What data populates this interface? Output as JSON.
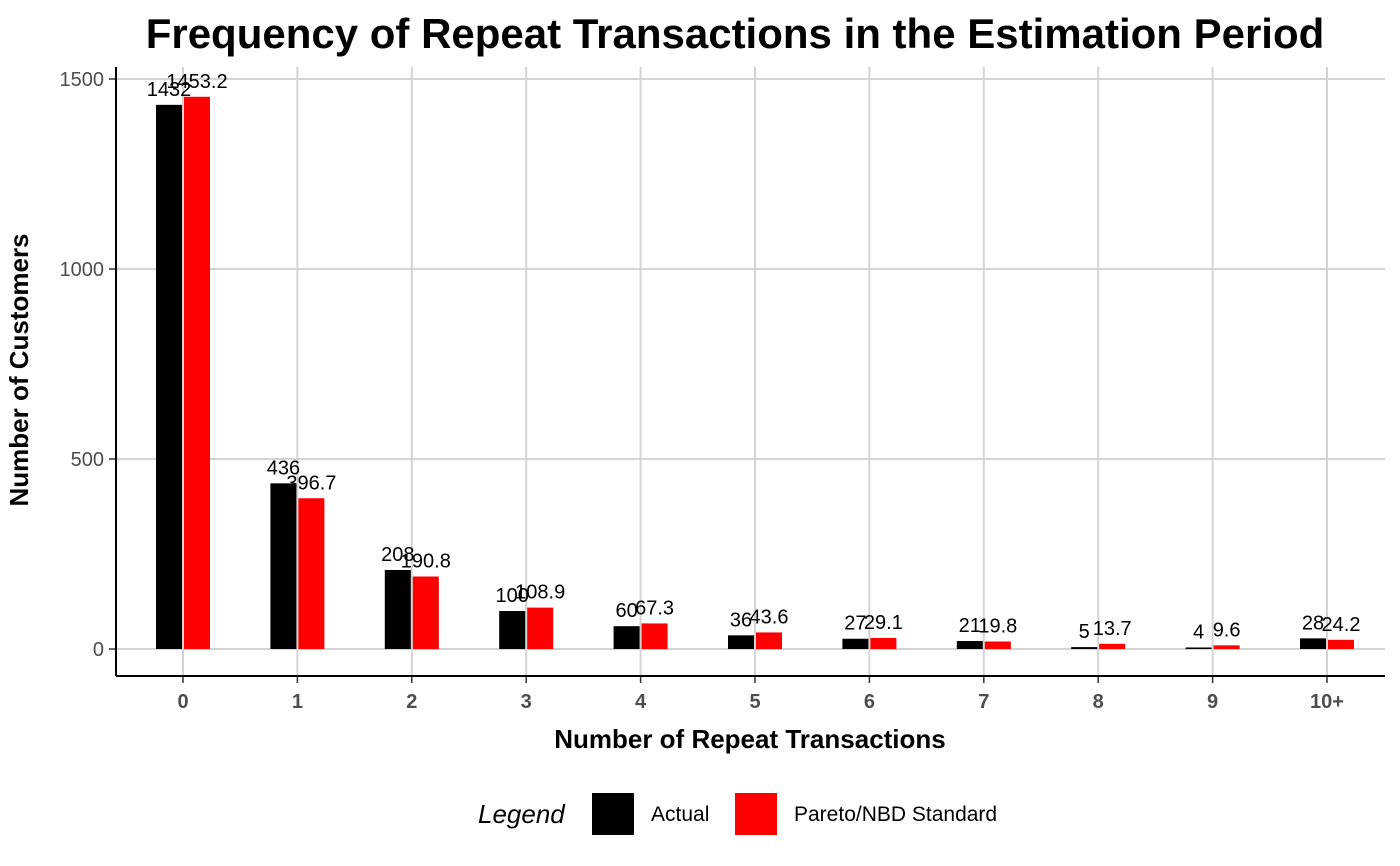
{
  "chart_data": {
    "type": "bar",
    "title": "Frequency of Repeat Transactions in the Estimation Period",
    "xlabel": "Number of Repeat Transactions",
    "ylabel": "Number of Customers",
    "categories": [
      "0",
      "1",
      "2",
      "3",
      "4",
      "5",
      "6",
      "7",
      "8",
      "9",
      "10+"
    ],
    "yticks": [
      0,
      500,
      1000,
      1500
    ],
    "ylim": [
      -70,
      1520
    ],
    "grid": true,
    "legend_position": "bottom",
    "legend_title": "Legend",
    "series": [
      {
        "name": "Actual",
        "color": "#000000",
        "values": [
          1432,
          436,
          208,
          100,
          60,
          36,
          27,
          21,
          5,
          4,
          28
        ],
        "labels": [
          "1432",
          "436",
          "208",
          "100",
          "60",
          "36",
          "27",
          "21",
          "5",
          "4",
          "28"
        ]
      },
      {
        "name": "Pareto/NBD Standard",
        "color": "#ff0000",
        "values": [
          1453.2,
          396.7,
          190.8,
          108.9,
          67.3,
          43.6,
          29.1,
          19.8,
          13.7,
          9.6,
          24.2
        ],
        "labels": [
          "1453.2",
          "396.7",
          "190.8",
          "108.9",
          "67.3",
          "43.6",
          "29.1",
          "19.8",
          "13.7",
          "9.6",
          "24.2"
        ]
      }
    ]
  }
}
